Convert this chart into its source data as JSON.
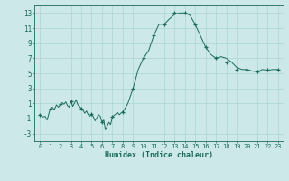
{
  "x_values": [
    0,
    0.3,
    0.5,
    0.7,
    1,
    1.2,
    1.4,
    1.6,
    1.8,
    2,
    2.17,
    2.33,
    2.5,
    2.67,
    2.83,
    3,
    3.17,
    3.33,
    3.5,
    3.67,
    3.83,
    4,
    4.17,
    4.33,
    4.5,
    4.67,
    4.83,
    5,
    5.17,
    5.33,
    5.5,
    5.67,
    5.83,
    6,
    6.17,
    6.33,
    6.5,
    6.67,
    6.83,
    7,
    7.17,
    7.33,
    7.5,
    7.67,
    7.83,
    8,
    8.17,
    8.5,
    9,
    9.5,
    10,
    10.5,
    11,
    11.5,
    12,
    12.5,
    13,
    13.5,
    14,
    14.5,
    15,
    15.5,
    16,
    16.5,
    17,
    17.5,
    18,
    18.5,
    19,
    19.5,
    20,
    20.5,
    21,
    21.5,
    22,
    22.5,
    23
  ],
  "y_values": [
    -0.5,
    -0.8,
    -0.7,
    -1.2,
    0.3,
    0.5,
    0.2,
    0.8,
    0.5,
    0.9,
    1.1,
    0.9,
    1.2,
    0.7,
    0.5,
    1.3,
    0.6,
    1.0,
    1.5,
    0.8,
    0.6,
    0.3,
    0.1,
    -0.3,
    0.0,
    -0.5,
    -0.7,
    -0.4,
    -0.8,
    -1.3,
    -0.9,
    -0.5,
    -0.7,
    -1.5,
    -1.2,
    -2.5,
    -2.0,
    -1.5,
    -1.8,
    -0.8,
    -0.6,
    -0.4,
    -0.2,
    -0.5,
    -0.3,
    -0.1,
    0.2,
    1.0,
    3.0,
    5.5,
    7.0,
    8.0,
    10.0,
    11.5,
    11.5,
    12.2,
    12.8,
    13.0,
    13.0,
    12.7,
    11.5,
    10.0,
    8.5,
    7.5,
    7.0,
    7.2,
    7.0,
    6.5,
    5.8,
    5.5,
    5.5,
    5.3,
    5.2,
    5.5,
    5.4,
    5.5,
    5.5
  ],
  "marker_x": [
    0,
    1,
    2,
    3,
    4,
    5,
    6,
    7,
    8,
    9,
    10,
    11,
    12,
    13,
    14,
    15,
    16,
    17,
    18,
    19,
    20,
    21,
    22,
    23
  ],
  "marker_y": [
    -0.5,
    0.3,
    0.9,
    1.3,
    0.3,
    -0.4,
    -1.5,
    -0.8,
    -0.1,
    3.0,
    7.0,
    10.0,
    11.5,
    13.0,
    13.0,
    11.5,
    8.5,
    7.0,
    6.5,
    5.5,
    5.5,
    5.2,
    5.5,
    5.5
  ],
  "line_color": "#1a6b5a",
  "bg_color": "#cce8e8",
  "grid_color": "#aad4d4",
  "xlabel": "Humidex (Indice chaleur)",
  "xlim": [
    -0.5,
    23.5
  ],
  "ylim": [
    -4,
    14
  ],
  "yticks": [
    -3,
    -1,
    1,
    3,
    5,
    7,
    9,
    11,
    13
  ],
  "xticks": [
    0,
    1,
    2,
    3,
    4,
    5,
    6,
    7,
    8,
    9,
    10,
    11,
    12,
    13,
    14,
    15,
    16,
    17,
    18,
    19,
    20,
    21,
    22,
    23
  ],
  "xtick_labels": [
    "0",
    "1",
    "2",
    "3",
    "4",
    "5",
    "6",
    "7",
    "8",
    "9",
    "10",
    "11",
    "12",
    "13",
    "14",
    "15",
    "16",
    "17",
    "18",
    "19",
    "20",
    "21",
    "22",
    "23"
  ]
}
